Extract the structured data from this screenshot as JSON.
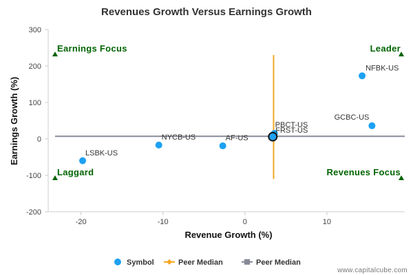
{
  "chart_data": {
    "type": "scatter",
    "title": "Revenues Growth Versus Earnings Growth",
    "xlabel": "Revenue Growth (%)",
    "ylabel": "Earnings Growth (%)",
    "xlim": [
      -24,
      19.5
    ],
    "ylim": [
      -200,
      300
    ],
    "xticks": [
      -20,
      -10,
      0,
      10
    ],
    "yticks": [
      -200,
      -100,
      0,
      100,
      200,
      300
    ],
    "grid": false,
    "points": [
      {
        "label": "LSBK-US",
        "x": -19.8,
        "y": -60
      },
      {
        "label": "NYCB-US",
        "x": -10.5,
        "y": -17
      },
      {
        "label": "AF-US",
        "x": -2.7,
        "y": -19
      },
      {
        "label": "PBCT-US",
        "x": 3.6,
        "y": 15
      },
      {
        "label": "FRST-US",
        "x": 3.4,
        "y": 6
      },
      {
        "label": "NFBK-US",
        "x": 14.3,
        "y": 173
      },
      {
        "label": "GCBC-US",
        "x": 15.5,
        "y": 36
      }
    ],
    "highlighted_point": {
      "x": 3.4,
      "y": 6
    },
    "peer_median_vertical": {
      "x": 3.5,
      "y_range": [
        -110,
        230
      ],
      "color": "#f5a623"
    },
    "peer_median_horizontal": {
      "y": 7,
      "color": "#888a99"
    },
    "quadrants": {
      "top_left": "Earnings Focus",
      "top_right": "Leader",
      "bottom_left": "Laggard",
      "bottom_right": "Revenues Focus"
    },
    "legend": {
      "placement": "bottom",
      "items": [
        {
          "label": "Symbol",
          "kind": "dot",
          "color": "#1da1f2"
        },
        {
          "label": "Peer Median",
          "kind": "diamond-line",
          "color": "#f5a623"
        },
        {
          "label": "Peer Median",
          "kind": "square-line",
          "color": "#888a99"
        }
      ]
    },
    "colors": {
      "point": "#1da1f2",
      "quadrant_marker": "#006400",
      "axis": "#cccccc"
    }
  },
  "watermark": "www.capitalcube.com"
}
